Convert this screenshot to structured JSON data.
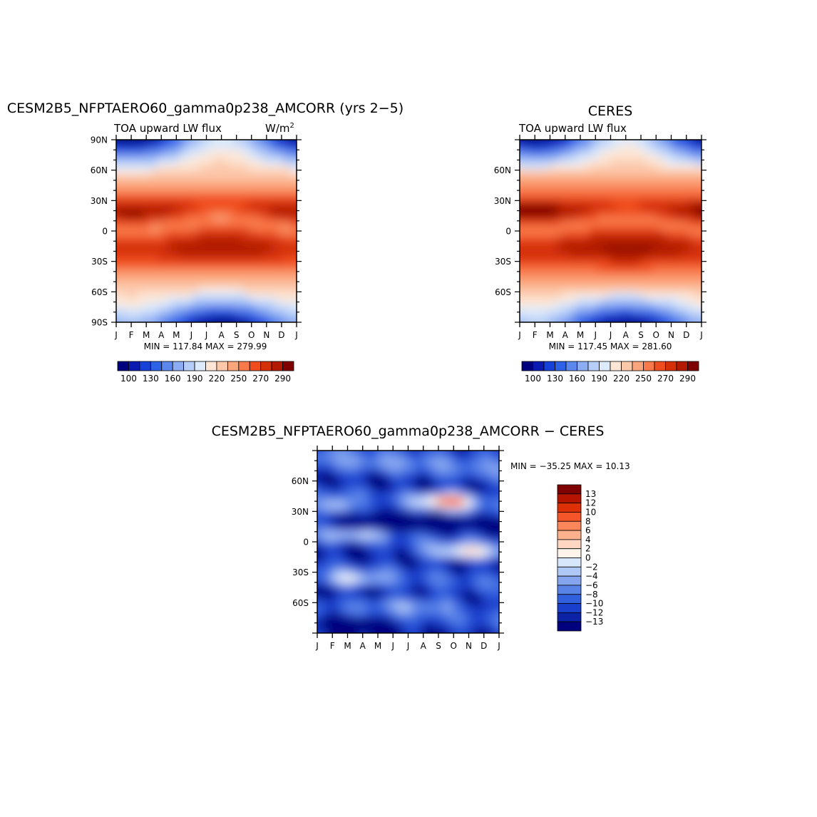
{
  "chart_data": [
    {
      "id": "model",
      "type": "heatmap",
      "title": "CESM2B5_NFPTAERO60_gamma0p238_AMCORR (yrs 2−5)",
      "subtitle_left": "TOA upward LW flux",
      "units": "W/m",
      "units_sup": "2",
      "x_ticks": [
        "J",
        "F",
        "M",
        "A",
        "M",
        "J",
        "J",
        "A",
        "S",
        "O",
        "N",
        "D",
        "J"
      ],
      "y_ticks": [
        "90N",
        "60N",
        "30N",
        "0",
        "30S",
        "60S",
        "90S"
      ],
      "stats": "MIN = 117.84 MAX = 279.99",
      "min": 117.84,
      "max": 279.99,
      "colorbar_labels": [
        "100",
        "130",
        "160",
        "190",
        "220",
        "250",
        "270",
        "290"
      ]
    },
    {
      "id": "obs",
      "type": "heatmap",
      "title": "CERES",
      "subtitle_left": "TOA upward LW flux",
      "x_ticks": [
        "J",
        "F",
        "M",
        "A",
        "M",
        "J",
        "J",
        "A",
        "S",
        "O",
        "N",
        "D",
        "J"
      ],
      "y_ticks": [
        "60N",
        "30N",
        "0",
        "30S",
        "60S"
      ],
      "stats": "MIN = 117.45 MAX = 281.60",
      "min": 117.45,
      "max": 281.6,
      "colorbar_labels": [
        "100",
        "130",
        "160",
        "190",
        "220",
        "250",
        "270",
        "290"
      ]
    },
    {
      "id": "diff",
      "type": "heatmap",
      "title": "CESM2B5_NFPTAERO60_gamma0p238_AMCORR − CERES",
      "x_ticks": [
        "J",
        "F",
        "M",
        "A",
        "M",
        "J",
        "J",
        "A",
        "S",
        "O",
        "N",
        "D",
        "J"
      ],
      "y_ticks": [
        "60N",
        "30N",
        "0",
        "30S",
        "60S"
      ],
      "stats": "MIN = −35.25 MAX =  10.13",
      "min": -35.25,
      "max": 10.13,
      "colorbar_labels": [
        "13",
        "12",
        "10",
        "8",
        "6",
        "4",
        "2",
        "0",
        "−2",
        "−4",
        "−6",
        "−8",
        "−10",
        "−12",
        "−13"
      ]
    }
  ],
  "palettes": {
    "flux": [
      "#00007f",
      "#0a1ab0",
      "#1640d8",
      "#2e62e6",
      "#5c88ee",
      "#8cacf3",
      "#b6cdf8",
      "#dceafc",
      "#fde6d6",
      "#fcc8aa",
      "#fba57c",
      "#f87a4b",
      "#f04d1f",
      "#d63008",
      "#b31a00",
      "#7f0000"
    ],
    "diff": [
      "#7f0000",
      "#b51500",
      "#dd3006",
      "#f4562a",
      "#fb865a",
      "#fdb18c",
      "#fed6c2",
      "#fff3ea",
      "#d8e6fb",
      "#b0c8f6",
      "#85a6ef",
      "#5a83e8",
      "#3160de",
      "#1a3fcc",
      "#0c22a6",
      "#00007f"
    ]
  }
}
